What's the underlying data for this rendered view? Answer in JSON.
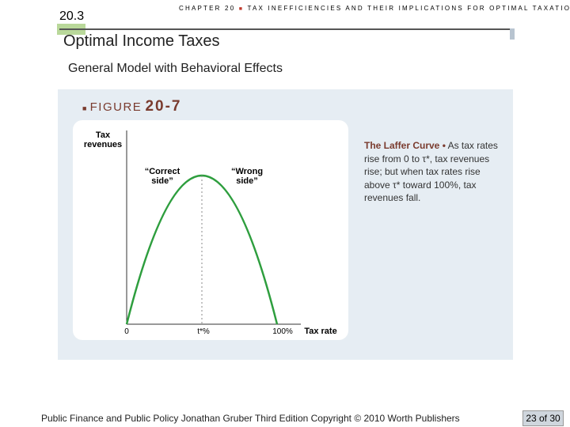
{
  "header": {
    "section": "20.3",
    "chapter": "CHAPTER 20",
    "chapter_title": "TAX INEFFICIENCIES AND THEIR IMPLICATIONS FOR OPTIMAL TAXATION"
  },
  "title": "Optimal Income Taxes",
  "subtitle": "General Model with Behavioral Effects",
  "figure": {
    "label": "FIGURE",
    "number": "20-7",
    "y_axis_label": "Tax revenues",
    "annotations": [
      "“Correct side”",
      "“Wrong side”"
    ],
    "x_labels": [
      "0",
      "t*%",
      "100%",
      "Tax rate"
    ],
    "caption_title": "The Laffer Curve •",
    "caption_text": "As tax rates rise from 0 to τ*, tax revenues rise; but when tax rates rise above τ* toward 100%, tax revenues fall."
  },
  "footer": {
    "credit": "Public Finance and Public Policy Jonathan Gruber Third Edition Copyright © 2010 Worth Publishers",
    "page": "23 of 30"
  }
}
